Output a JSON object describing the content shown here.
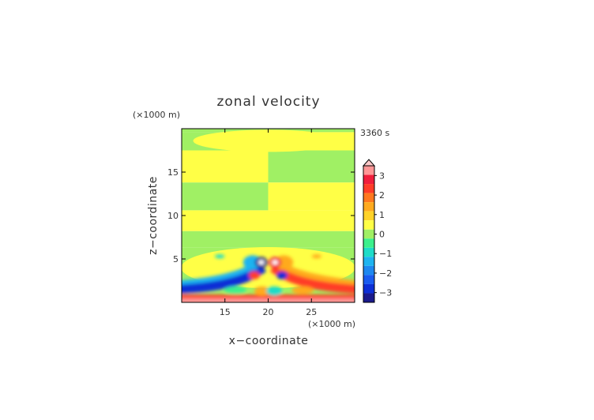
{
  "chart_data": {
    "type": "heatmap",
    "title": "zonal velocity",
    "time_label": "3360 s",
    "xlabel": "x−coordinate",
    "ylabel": "z−coordinate",
    "x_unit": "(×1000 m)",
    "y_unit": "(×1000 m)",
    "xlim": [
      10,
      30
    ],
    "ylim": [
      0,
      20
    ],
    "x_ticks": [
      15,
      20,
      25
    ],
    "y_ticks": [
      5,
      10,
      15
    ],
    "x_tick_labels": [
      "15",
      "20",
      "25"
    ],
    "y_tick_labels": [
      "5",
      "10",
      "15"
    ],
    "grid": false,
    "colorbar": {
      "levels": [
        -3.5,
        -3,
        -2.5,
        -2,
        -1.5,
        -1,
        -0.5,
        0,
        0.5,
        1,
        1.5,
        2,
        2.5,
        3,
        3.5
      ],
      "colors": [
        "#1a1a8c",
        "#0d2fd6",
        "#1a5cf0",
        "#1e88f0",
        "#1eb4f0",
        "#1edcc8",
        "#3cf08c",
        "#a0f064",
        "#ffff46",
        "#ffd228",
        "#ffaa1e",
        "#ff781e",
        "#ff3c28",
        "#f01e3c",
        "#ff9696",
        "#ffc8c8"
      ],
      "tick_labels": [
        "3",
        "2",
        "1",
        "0",
        "−1",
        "−2",
        "−3"
      ],
      "tick_values": [
        3,
        2,
        1,
        0,
        -1,
        -2,
        -3
      ],
      "extend": "max"
    },
    "features": [
      {
        "type": "band",
        "z_range": [
          0,
          0.5
        ],
        "value": 2.5,
        "note": "surface band"
      },
      {
        "type": "band",
        "z_range": [
          0.8,
          2.2
        ],
        "value": -2.5,
        "side": "left"
      },
      {
        "type": "band",
        "z_range": [
          0.8,
          2.2
        ],
        "value": 2.5,
        "side": "right"
      },
      {
        "type": "cell",
        "x": 19.2,
        "z": 4.6,
        "value": -3.5
      },
      {
        "type": "cell",
        "x": 20.8,
        "z": 4.6,
        "value": 3.5
      }
    ]
  }
}
